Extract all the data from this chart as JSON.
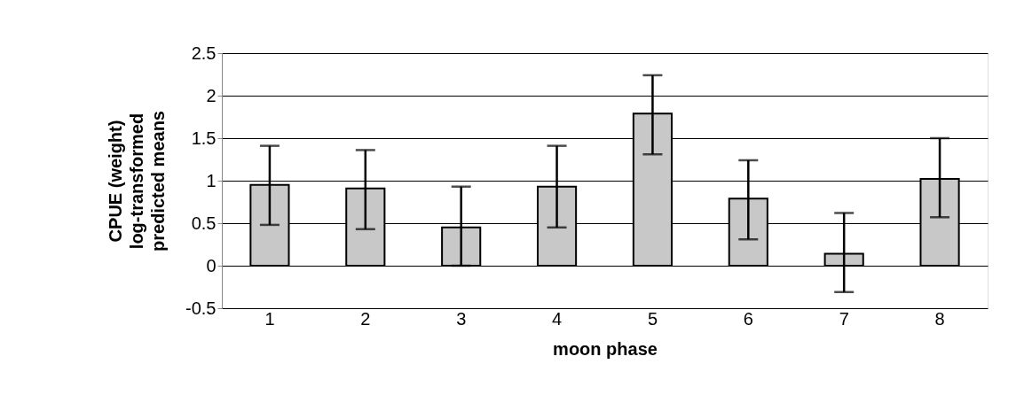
{
  "chart_data": {
    "type": "bar",
    "xlabel": "moon phase",
    "ylabel": "CPUE (weight)\nlog-transformed\npredicted means",
    "categories": [
      "1",
      "2",
      "3",
      "4",
      "5",
      "6",
      "7",
      "8"
    ],
    "values": [
      0.95,
      0.91,
      0.45,
      0.93,
      1.79,
      0.79,
      0.14,
      1.02
    ],
    "errors": [
      [
        0.48,
        1.41
      ],
      [
        0.43,
        1.36
      ],
      [
        0.0,
        0.93
      ],
      [
        0.45,
        1.41
      ],
      [
        1.31,
        2.24
      ],
      [
        0.31,
        1.24
      ],
      [
        -0.31,
        0.62
      ],
      [
        0.57,
        1.5
      ]
    ],
    "color": "#c8c8c8",
    "ylim": [
      -0.5,
      2.5
    ],
    "yticks": [
      -0.5,
      0,
      0.5,
      1,
      1.5,
      2,
      2.5
    ],
    "grid": "y"
  }
}
